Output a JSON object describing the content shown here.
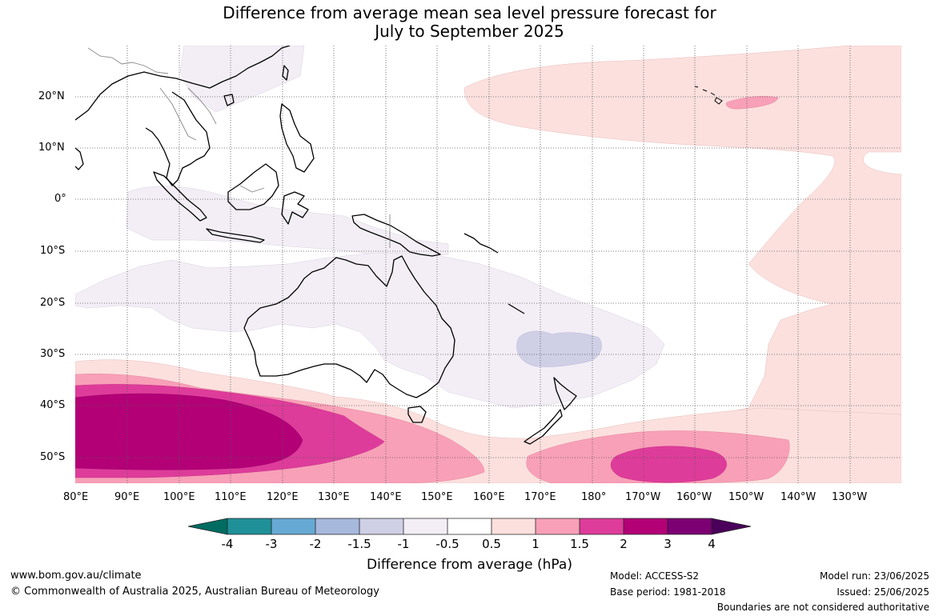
{
  "title": {
    "line1": "Difference from average mean sea level pressure forecast for",
    "line2": "July to September 2025"
  },
  "map": {
    "lat_labels": [
      "20°N",
      "10°N",
      "0°",
      "10°S",
      "20°S",
      "30°S",
      "40°S",
      "50°S"
    ],
    "lon_labels": [
      "80°E",
      "90°E",
      "100°E",
      "110°E",
      "120°E",
      "130°E",
      "140°E",
      "150°E",
      "160°E",
      "170°E",
      "180°",
      "170°W",
      "160°W",
      "150°W",
      "140°W",
      "130°W"
    ],
    "gridlines": "dotted",
    "land_outline_color": "#000000"
  },
  "colorbar": {
    "title": "Difference from average (hPa)",
    "tick_labels": [
      "-4",
      "-3",
      "-2",
      "-1.5",
      "-1",
      "-0.5",
      "0.5",
      "1",
      "1.5",
      "2",
      "3",
      "4"
    ],
    "colors": [
      "#006c61",
      "#1f9098",
      "#66a9d4",
      "#a6b8dc",
      "#cfcfe6",
      "#f3eef6",
      "#ffffff",
      "#fbe0de",
      "#f8a0b8",
      "#de3c9a",
      "#b30077",
      "#7c0072",
      "#4a005a"
    ]
  },
  "footer": {
    "url": "www.bom.gov.au/climate",
    "copyright": "© Commonwealth of Australia 2025, Australian Bureau of Meteorology",
    "model": "Model: ACCESS-S2",
    "base_period": "Base period: 1981-2018",
    "model_run": "Model run: 23/06/2025",
    "issued": "Issued: 25/06/2025",
    "disclaimer": "Boundaries are not considered authoritative"
  }
}
